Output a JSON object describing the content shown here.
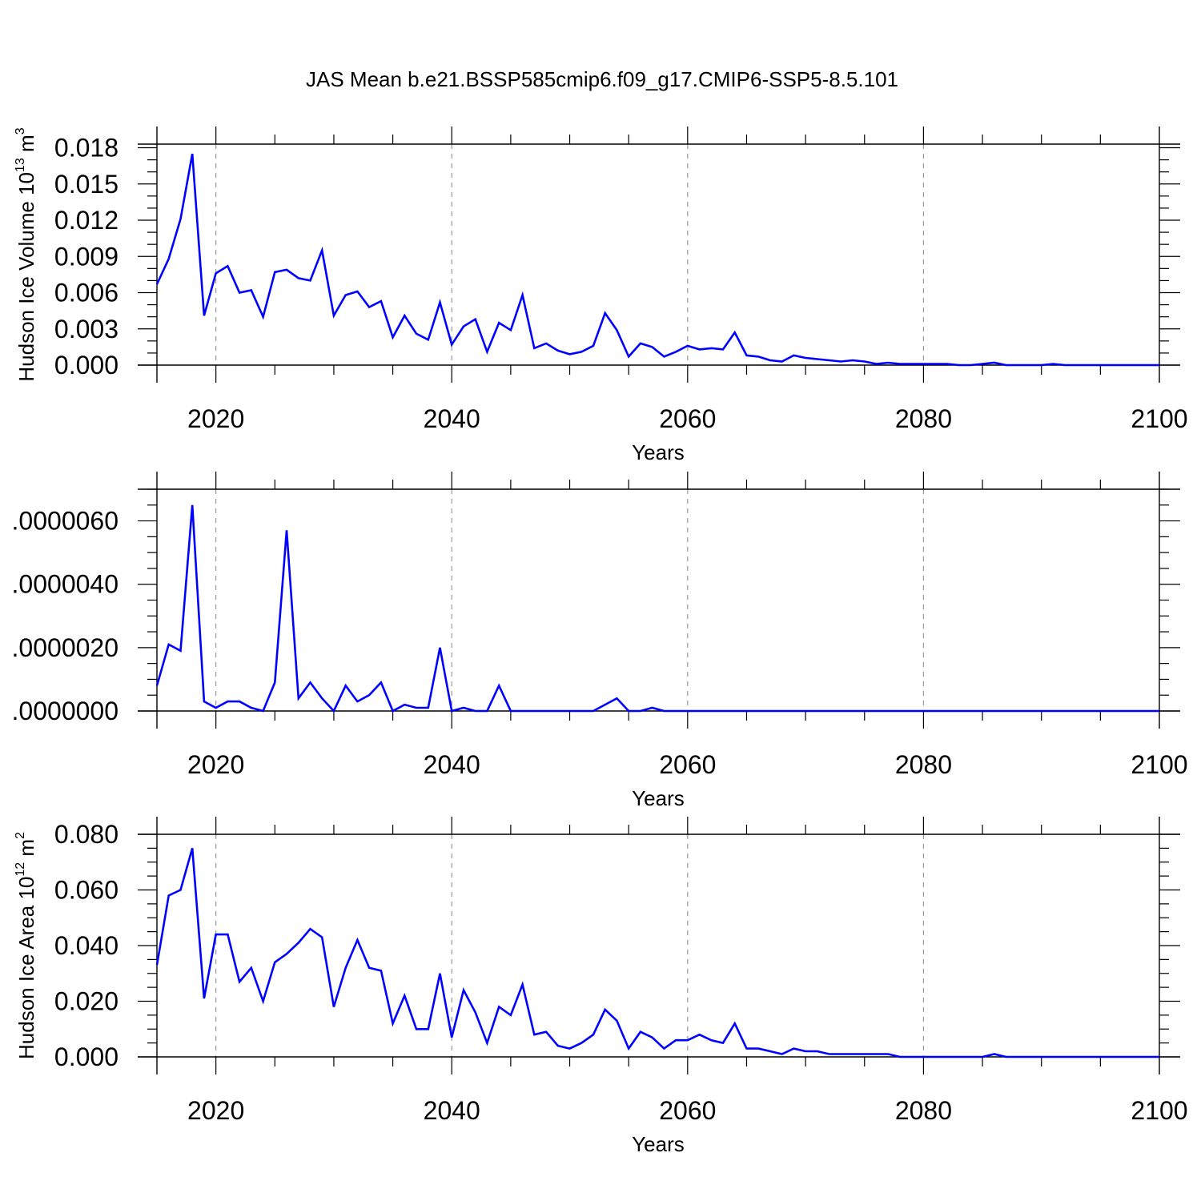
{
  "title": "JAS Mean b.e21.BSSP585cmip6.f09_g17.CMIP6-SSP5-8.5.101",
  "colors": {
    "line": "#0000ff",
    "axis": "#000000",
    "grid": "#9a9a9a",
    "background": "#ffffff"
  },
  "chart_data": [
    {
      "type": "line",
      "title": "",
      "xlabel": "Years",
      "ylabel_parts": {
        "text": "Hudson Ice Volume 10",
        "exp": "13",
        "unit": " m",
        "unit_exp": "3"
      },
      "xlim": [
        2015,
        2100
      ],
      "ylim": [
        0,
        0.0183
      ],
      "x_ticks": [
        "2020",
        "2040",
        "2060",
        "2080",
        "2100"
      ],
      "x_tick_values": [
        2020,
        2040,
        2060,
        2080,
        2100
      ],
      "y_ticks": [
        "0.000",
        "0.003",
        "0.006",
        "0.009",
        "0.012",
        "0.015",
        "0.018"
      ],
      "y_tick_values": [
        0,
        0.003,
        0.006,
        0.009,
        0.012,
        0.015,
        0.018
      ],
      "y_minor_step": 0.001,
      "grid": "vertical dashed at major x ticks",
      "series": [
        {
          "x": [
            2015,
            2016,
            2017,
            2018,
            2019,
            2020,
            2021,
            2022,
            2023,
            2024,
            2025,
            2026,
            2027,
            2028,
            2029,
            2030,
            2031,
            2032,
            2033,
            2034,
            2035,
            2036,
            2037,
            2038,
            2039,
            2040,
            2041,
            2042,
            2043,
            2044,
            2045,
            2046,
            2047,
            2048,
            2049,
            2050,
            2051,
            2052,
            2053,
            2054,
            2055,
            2056,
            2057,
            2058,
            2059,
            2060,
            2061,
            2062,
            2063,
            2064,
            2065,
            2066,
            2067,
            2068,
            2069,
            2070,
            2071,
            2072,
            2073,
            2074,
            2075,
            2076,
            2077,
            2078,
            2079,
            2080,
            2081,
            2082,
            2083,
            2084,
            2085,
            2086,
            2087,
            2088,
            2089,
            2090,
            2091,
            2092,
            2093,
            2094,
            2095,
            2096,
            2097,
            2098,
            2099,
            2100
          ],
          "y": [
            0.0067,
            0.0088,
            0.0121,
            0.0175,
            0.0041,
            0.0076,
            0.0082,
            0.006,
            0.0062,
            0.004,
            0.0077,
            0.0079,
            0.0072,
            0.007,
            0.0095,
            0.0041,
            0.0058,
            0.0061,
            0.0048,
            0.0053,
            0.0023,
            0.0041,
            0.0026,
            0.0021,
            0.0052,
            0.0017,
            0.0032,
            0.0038,
            0.0011,
            0.0035,
            0.0029,
            0.0058,
            0.0014,
            0.0018,
            0.0012,
            0.0009,
            0.0011,
            0.0016,
            0.0043,
            0.0029,
            0.0007,
            0.0018,
            0.0015,
            0.0007,
            0.0011,
            0.0016,
            0.0013,
            0.0014,
            0.0013,
            0.0027,
            0.0008,
            0.0007,
            0.0004,
            0.0003,
            0.0008,
            0.0006,
            0.0005,
            0.0004,
            0.0003,
            0.0004,
            0.0003,
            0.0001,
            0.0002,
            0.0001,
            0.0001,
            0.0001,
            0.0001,
            0.0001,
            0.0,
            0.0,
            0.0001,
            0.0002,
            0.0,
            0.0,
            0.0,
            0.0,
            0.0001,
            0.0,
            0.0,
            0.0,
            0.0,
            0.0,
            0.0,
            0.0,
            0.0,
            0.0
          ]
        }
      ]
    },
    {
      "type": "line",
      "title": "",
      "xlabel": "Years",
      "ylabel_parts": null,
      "xlim": [
        2015,
        2100
      ],
      "ylim": [
        0,
        7e-06
      ],
      "x_ticks": [
        "2020",
        "2040",
        "2060",
        "2080",
        "2100"
      ],
      "x_tick_values": [
        2020,
        2040,
        2060,
        2080,
        2100
      ],
      "y_ticks": [
        ".0000000",
        ".0000020",
        ".0000040",
        ".0000060"
      ],
      "y_tick_values": [
        0,
        2e-06,
        4e-06,
        6e-06
      ],
      "y_minor_step": 5e-07,
      "grid": "vertical dashed at major x ticks",
      "series": [
        {
          "x": [
            2015,
            2016,
            2017,
            2018,
            2019,
            2020,
            2021,
            2022,
            2023,
            2024,
            2025,
            2026,
            2027,
            2028,
            2029,
            2030,
            2031,
            2032,
            2033,
            2034,
            2035,
            2036,
            2037,
            2038,
            2039,
            2040,
            2041,
            2042,
            2043,
            2044,
            2045,
            2046,
            2047,
            2048,
            2049,
            2050,
            2051,
            2052,
            2053,
            2054,
            2055,
            2056,
            2057,
            2058,
            2059,
            2060,
            2061,
            2062,
            2063,
            2064,
            2065,
            2066,
            2067,
            2068,
            2069,
            2070,
            2071,
            2072,
            2073,
            2074,
            2075,
            2076,
            2077,
            2078,
            2079,
            2080,
            2081,
            2082,
            2083,
            2084,
            2085,
            2086,
            2087,
            2088,
            2089,
            2090,
            2091,
            2092,
            2093,
            2094,
            2095,
            2096,
            2097,
            2098,
            2099,
            2100
          ],
          "y": [
            8e-07,
            2.1e-06,
            1.9e-06,
            6.5e-06,
            3e-07,
            1e-07,
            3e-07,
            3e-07,
            1e-07,
            0.0,
            9e-07,
            5.7e-06,
            4e-07,
            9e-07,
            4e-07,
            0.0,
            8e-07,
            3e-07,
            5e-07,
            9e-07,
            0.0,
            2e-07,
            1e-07,
            1e-07,
            2e-06,
            0.0,
            1e-07,
            0.0,
            0.0,
            8e-07,
            0.0,
            0.0,
            0.0,
            0.0,
            0.0,
            0.0,
            0.0,
            0.0,
            2e-07,
            4e-07,
            0.0,
            0.0,
            1e-07,
            0.0,
            0.0,
            0.0,
            0.0,
            0.0,
            0.0,
            0.0,
            0.0,
            0.0,
            0.0,
            0.0,
            0.0,
            0.0,
            0.0,
            0.0,
            0.0,
            0.0,
            0.0,
            0.0,
            0.0,
            0.0,
            0.0,
            0.0,
            0.0,
            0.0,
            0.0,
            0.0,
            0.0,
            0.0,
            0.0,
            0.0,
            0.0,
            0.0,
            0.0,
            0.0,
            0.0,
            0.0,
            0.0,
            0.0,
            0.0,
            0.0,
            0.0,
            0.0
          ]
        }
      ]
    },
    {
      "type": "line",
      "title": "",
      "xlabel": "Years",
      "ylabel_parts": {
        "text": "Hudson Ice Area 10",
        "exp": "12",
        "unit": " m",
        "unit_exp": "2"
      },
      "xlim": [
        2015,
        2100
      ],
      "ylim": [
        0,
        0.08
      ],
      "x_ticks": [
        "2020",
        "2040",
        "2060",
        "2080",
        "2100"
      ],
      "x_tick_values": [
        2020,
        2040,
        2060,
        2080,
        2100
      ],
      "y_ticks": [
        "0.000",
        "0.020",
        "0.040",
        "0.060",
        "0.080"
      ],
      "y_tick_values": [
        0,
        0.02,
        0.04,
        0.06,
        0.08
      ],
      "y_minor_step": 0.005,
      "grid": "vertical dashed at major x ticks",
      "series": [
        {
          "x": [
            2015,
            2016,
            2017,
            2018,
            2019,
            2020,
            2021,
            2022,
            2023,
            2024,
            2025,
            2026,
            2027,
            2028,
            2029,
            2030,
            2031,
            2032,
            2033,
            2034,
            2035,
            2036,
            2037,
            2038,
            2039,
            2040,
            2041,
            2042,
            2043,
            2044,
            2045,
            2046,
            2047,
            2048,
            2049,
            2050,
            2051,
            2052,
            2053,
            2054,
            2055,
            2056,
            2057,
            2058,
            2059,
            2060,
            2061,
            2062,
            2063,
            2064,
            2065,
            2066,
            2067,
            2068,
            2069,
            2070,
            2071,
            2072,
            2073,
            2074,
            2075,
            2076,
            2077,
            2078,
            2079,
            2080,
            2081,
            2082,
            2083,
            2084,
            2085,
            2086,
            2087,
            2088,
            2089,
            2090,
            2091,
            2092,
            2093,
            2094,
            2095,
            2096,
            2097,
            2098,
            2099,
            2100
          ],
          "y": [
            0.033,
            0.058,
            0.06,
            0.075,
            0.021,
            0.044,
            0.044,
            0.027,
            0.032,
            0.02,
            0.034,
            0.037,
            0.041,
            0.046,
            0.043,
            0.018,
            0.032,
            0.042,
            0.032,
            0.031,
            0.012,
            0.022,
            0.01,
            0.01,
            0.03,
            0.007,
            0.024,
            0.016,
            0.005,
            0.018,
            0.015,
            0.026,
            0.008,
            0.009,
            0.004,
            0.003,
            0.005,
            0.008,
            0.017,
            0.013,
            0.003,
            0.009,
            0.007,
            0.003,
            0.006,
            0.006,
            0.008,
            0.006,
            0.005,
            0.012,
            0.003,
            0.003,
            0.002,
            0.001,
            0.003,
            0.002,
            0.002,
            0.001,
            0.001,
            0.001,
            0.001,
            0.001,
            0.001,
            0.0,
            0.0,
            0.0,
            0.0,
            0.0,
            0.0,
            0.0,
            0.0,
            0.001,
            0.0,
            0.0,
            0.0,
            0.0,
            0.0,
            0.0,
            0.0,
            0.0,
            0.0,
            0.0,
            0.0,
            0.0,
            0.0,
            0.0
          ]
        }
      ]
    }
  ]
}
